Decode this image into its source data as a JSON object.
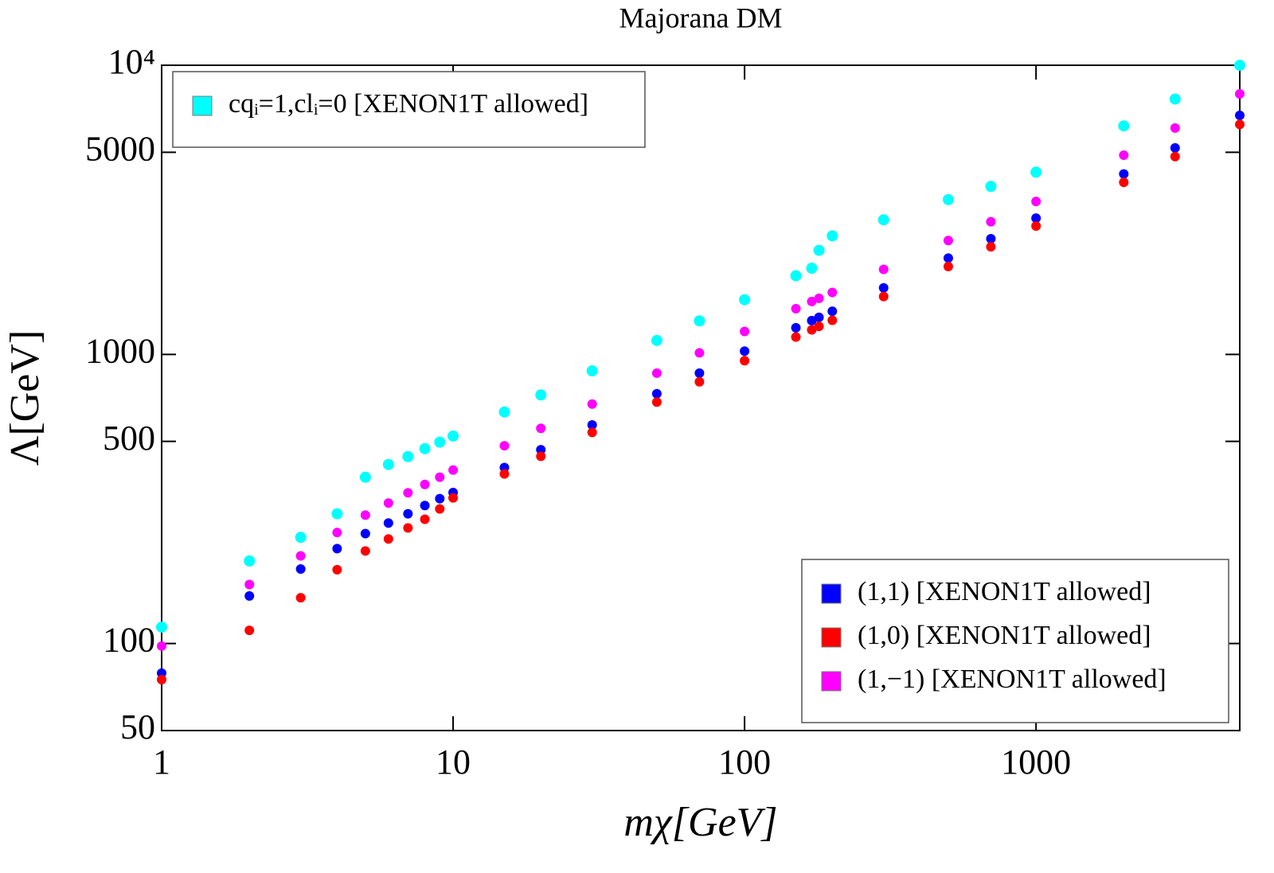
{
  "chart_data": {
    "type": "scatter",
    "title": "Majorana DM",
    "x_label": "mχ[GeV]",
    "y_label": "Λ[GeV]",
    "xscale": "log",
    "yscale": "log",
    "xlim": [
      1,
      5000
    ],
    "ylim": [
      50,
      10000
    ],
    "xticks": [
      1,
      10,
      100,
      1000
    ],
    "yticks": [
      50,
      100,
      500,
      1000,
      5000,
      {
        "value": 10000,
        "label": "10⁴"
      }
    ],
    "x": [
      1,
      2,
      3,
      4,
      5,
      6,
      7,
      8,
      9,
      10,
      15,
      20,
      30,
      50,
      70,
      100,
      150,
      170,
      180,
      200,
      300,
      500,
      700,
      1000,
      2000,
      3000,
      5000
    ],
    "series": [
      {
        "name": "cqᵢ=1,clᵢ=0 [XENON1T allowed]",
        "color": "#00ffff",
        "legend": "upper left",
        "values": [
          114,
          193,
          233,
          281,
          376,
          416,
          443,
          472,
          497,
          522,
          632,
          724,
          877,
          1117,
          1306,
          1546,
          1871,
          1986,
          2290,
          2570,
          2920,
          3430,
          3810,
          4266,
          6170,
          7640,
          10000
        ]
      },
      {
        "name": "(1,−1) [XENON1T allowed]",
        "color": "#ff00ff",
        "legend": "lower right",
        "values": [
          98,
          160,
          201,
          242,
          278,
          306,
          332,
          355,
          376,
          398,
          483,
          555,
          673,
          861,
          1012,
          1200,
          1439,
          1524,
          1563,
          1637,
          1968,
          2477,
          2877,
          3380,
          4887,
          6067,
          7960
        ]
      },
      {
        "name": "(1,1) [XENON1T allowed]",
        "color": "#0000ff",
        "legend": "lower right",
        "values": [
          79,
          146,
          181,
          213,
          240,
          261,
          281,
          300,
          317,
          333,
          406,
          468,
          570,
          731,
          861,
          1026,
          1236,
          1309,
          1343,
          1410,
          1698,
          2153,
          2512,
          2960,
          4207,
          5176,
          6710
        ]
      },
      {
        "name": "(1,0) [XENON1T allowed]",
        "color": "#ff0000",
        "legend": "lower right",
        "values": [
          75,
          111,
          144,
          180,
          209,
          230,
          251,
          269,
          292,
          319,
          386,
          444,
          537,
          684,
          804,
          951,
          1148,
          1216,
          1250,
          1312,
          1585,
          2014,
          2355,
          2780,
          3936,
          4831,
          6240
        ]
      }
    ]
  }
}
